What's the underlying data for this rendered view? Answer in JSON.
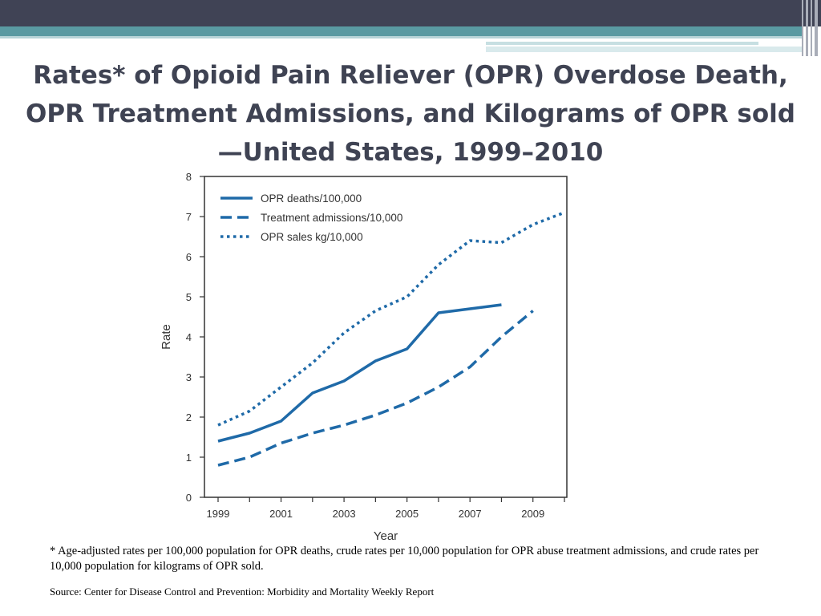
{
  "slide": {
    "title": "Rates* of Opioid Pain Reliever (OPR) Overdose Death, OPR Treatment Admissions, and Kilograms of OPR sold—United States, 1999–2010",
    "footnote": "* Age-adjusted rates per 100,000 population for OPR deaths, crude rates per 10,000 population for OPR abuse treatment admissions, and crude rates per 10,000 population for kilograms of OPR sold.",
    "source": "Source: Center for Disease Control and Prevention:  Morbidity and Mortality Weekly Report"
  },
  "colors": {
    "header_dark": "#404355",
    "header_teal": "#5a9aa2",
    "title_text": "#3f4353",
    "series": "#1f6aa8"
  },
  "chart_data": {
    "type": "line",
    "xlabel": "Year",
    "ylabel": "Rate",
    "xlim": [
      1999,
      2010
    ],
    "ylim": [
      0,
      8
    ],
    "x_ticks": [
      1999,
      2001,
      2003,
      2005,
      2007,
      2009
    ],
    "y_ticks": [
      0,
      1,
      2,
      3,
      4,
      5,
      6,
      7,
      8
    ],
    "grid": false,
    "legend_position": "top-left",
    "series": [
      {
        "name": "OPR deaths/100,000",
        "style": "solid",
        "x": [
          1999,
          2000,
          2001,
          2002,
          2003,
          2004,
          2005,
          2006,
          2007,
          2008
        ],
        "values": [
          1.4,
          1.6,
          1.9,
          2.6,
          2.9,
          3.4,
          3.7,
          4.6,
          4.7,
          4.8
        ]
      },
      {
        "name": "Treatment admissions/10,000",
        "style": "dashed",
        "x": [
          1999,
          2000,
          2001,
          2002,
          2003,
          2004,
          2005,
          2006,
          2007,
          2008,
          2009
        ],
        "values": [
          0.8,
          1.0,
          1.35,
          1.6,
          1.8,
          2.05,
          2.35,
          2.75,
          3.25,
          4.0,
          4.65
        ]
      },
      {
        "name": "OPR sales kg/10,000",
        "style": "dotted",
        "x": [
          1999,
          2000,
          2001,
          2002,
          2003,
          2004,
          2005,
          2006,
          2007,
          2008,
          2009,
          2010
        ],
        "values": [
          1.8,
          2.15,
          2.75,
          3.35,
          4.1,
          4.65,
          5.0,
          5.8,
          6.4,
          6.35,
          6.8,
          7.1
        ]
      }
    ]
  }
}
